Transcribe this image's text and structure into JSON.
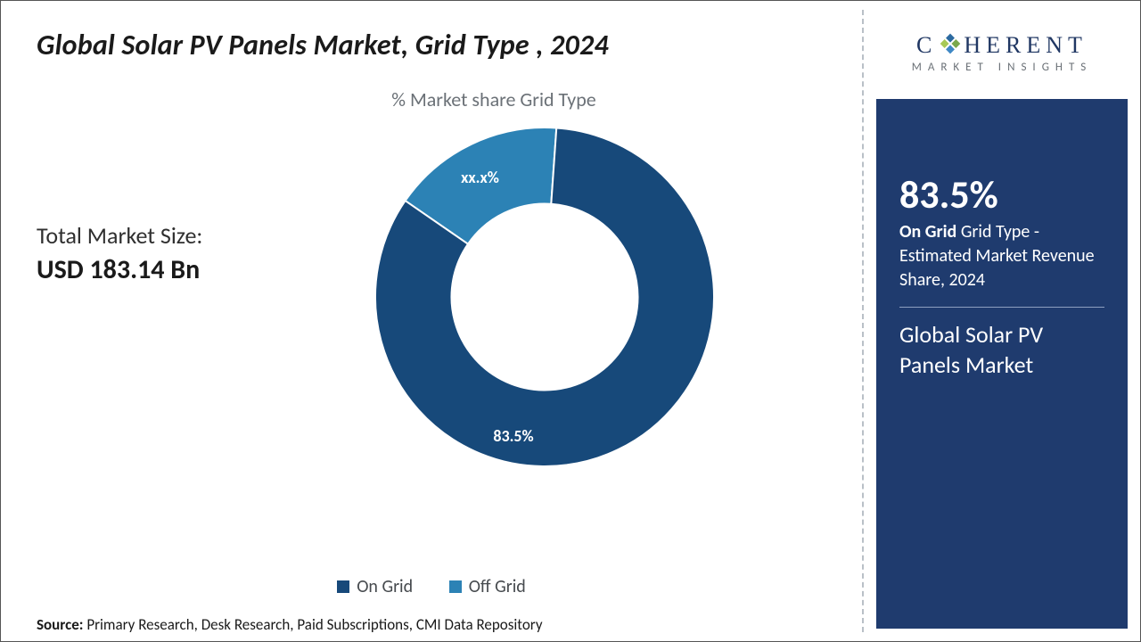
{
  "title": "Global Solar PV Panels Market, Grid Type , 2024",
  "chart": {
    "type": "donut",
    "subtitle": "% Market share Grid Type",
    "inner_radius_ratio": 0.55,
    "start_angle_deg": 0,
    "background_color": "#ffffff",
    "series": [
      {
        "name": "On Grid",
        "value": 83.5,
        "label": "83.5%",
        "color": "#17497a"
      },
      {
        "name": "Off Grid",
        "value": 16.5,
        "label": "xx.x%",
        "color": "#2c82b5"
      }
    ],
    "label_color": "#ffffff",
    "label_fontsize": 18,
    "legend_fontsize": 20,
    "legend_color": "#464a4e"
  },
  "market_size": {
    "label": "Total Market Size:",
    "value": "USD 183.14 Bn",
    "label_fontsize": 26,
    "value_fontsize": 30
  },
  "source": {
    "label": "Source:",
    "text": "Primary Research, Desk Research, Paid Subscriptions, CMI Data Repository"
  },
  "logo": {
    "text_left": "C",
    "text_right": "HERENT",
    "sub": "MARKET INSIGHTS",
    "color": "#203763",
    "glyph_colors": [
      "#2c6aa0",
      "#7aa84c",
      "#3f88c5",
      "#a7c957"
    ]
  },
  "side_panel": {
    "background_color": "#1f3b6e",
    "headline": "83.5%",
    "desc_bold": "On Grid",
    "desc_rest": "Grid Type  - Estimated Market Revenue Share, 2024",
    "market_name": "Global Solar PV Panels Market",
    "text_color": "#ffffff",
    "headline_fontsize": 44,
    "desc_fontsize": 20,
    "market_fontsize": 26
  }
}
